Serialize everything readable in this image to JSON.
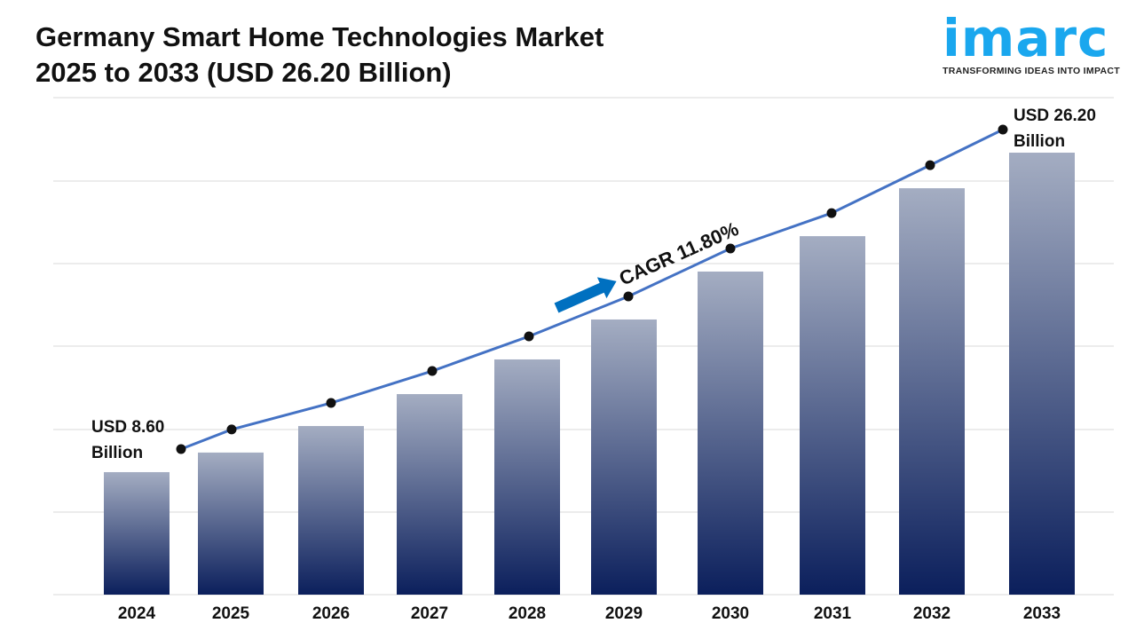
{
  "title_line1": "Germany Smart Home Technologies Market",
  "title_line2": "2025 to 2033 (USD 26.20 Billion)",
  "logo": {
    "word": "imarc",
    "tagline": "TRANSFORMING IDEAS INTO IMPACT",
    "color": "#1aa7ee"
  },
  "chart_data": {
    "type": "bar",
    "categories": [
      "2024",
      "2025",
      "2026",
      "2027",
      "2028",
      "2029",
      "2030",
      "2031",
      "2032",
      "2033"
    ],
    "values": [
      8.6,
      9.68,
      11.14,
      12.9,
      14.81,
      17.01,
      19.65,
      21.6,
      24.24,
      26.2
    ],
    "line_overlay": true,
    "grid": true,
    "annotations": {
      "start_line1": "USD 8.60",
      "start_line2": "Billion",
      "end_line1": "USD 26.20",
      "end_line2": "Billion",
      "cagr": "CAGR 11.80%"
    },
    "colors": {
      "bar_top": "#a4adc2",
      "bar_bottom": "#0b1f5c",
      "line": "#4472c4",
      "arrow": "#0070c0",
      "grid": "#d9d9d9"
    }
  }
}
